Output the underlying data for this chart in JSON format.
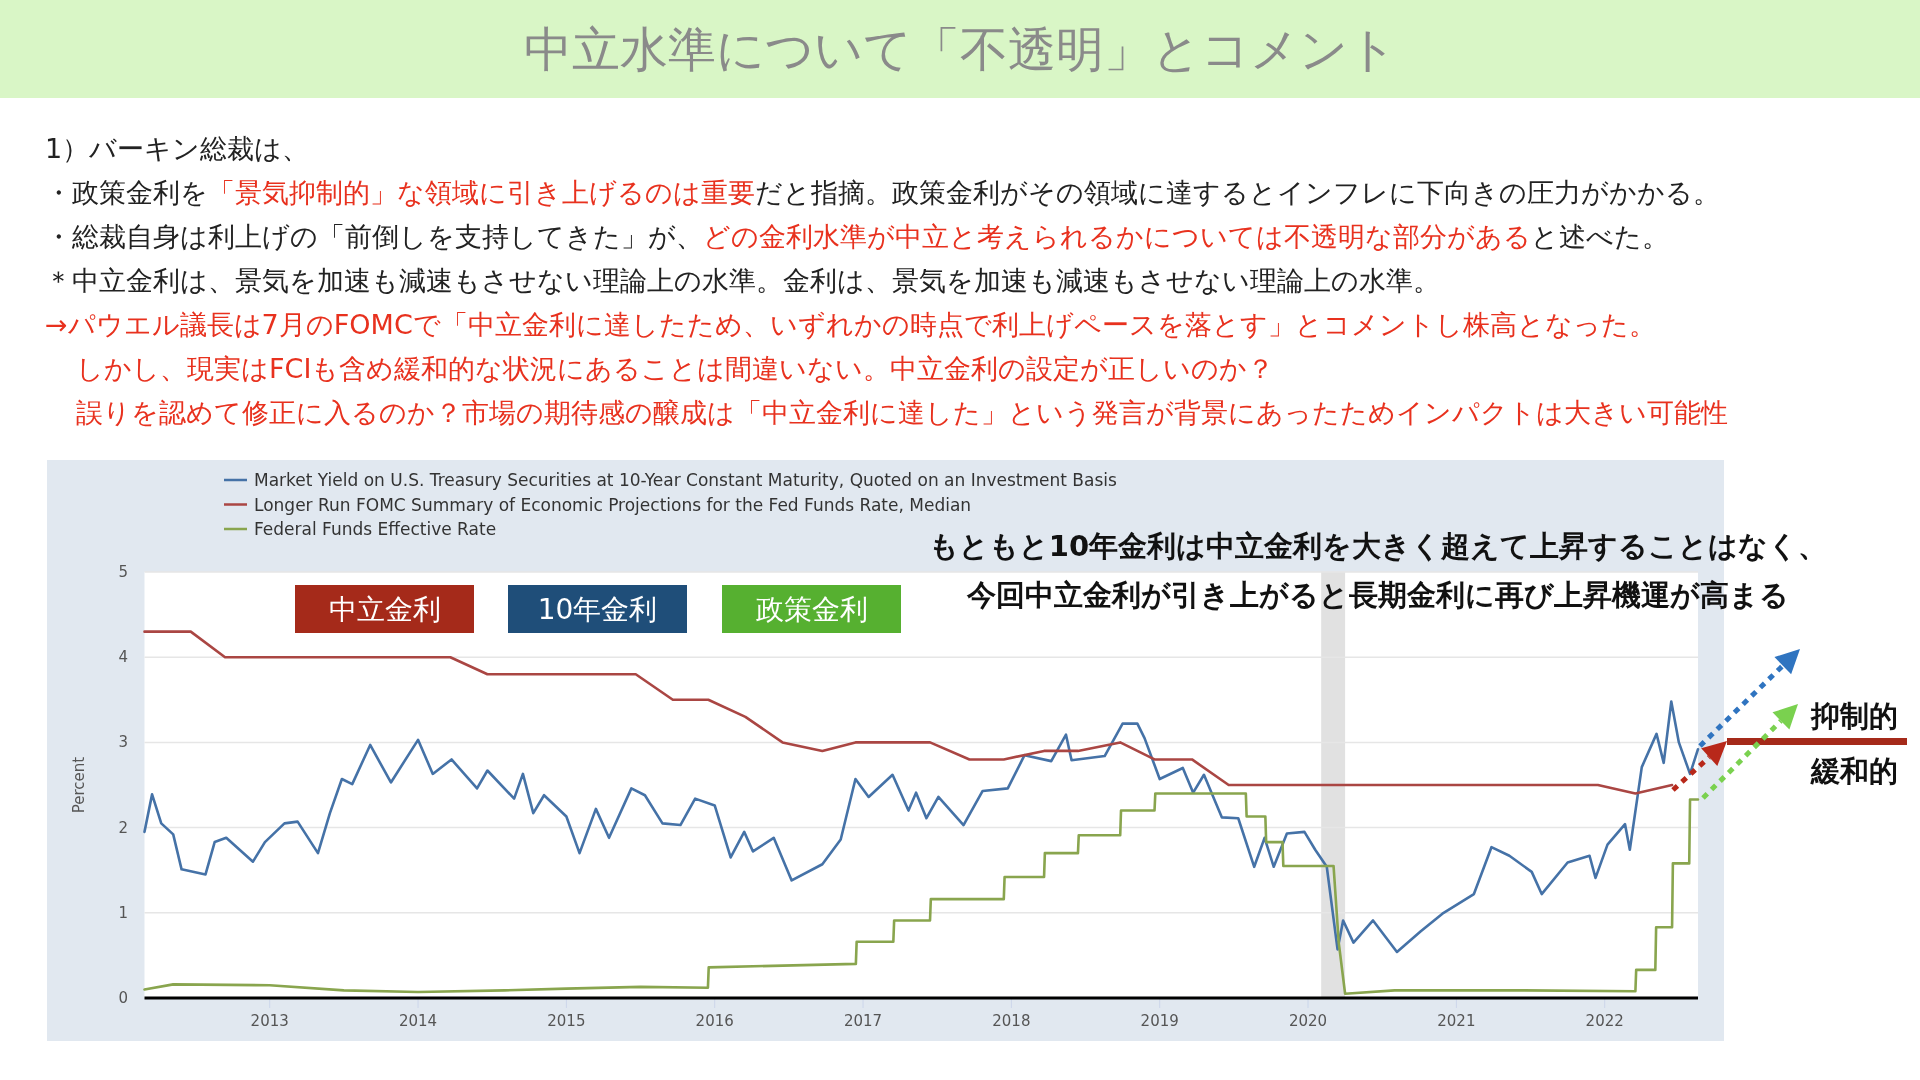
{
  "chart_data": {
    "type": "line",
    "title": "中立水準について「不透明」とコメント",
    "ylabel": "Percent",
    "annotations": [
      "1）バーキン総裁は、",
      "・政策金利を",
      "「景気抑制的」な領域に引き上げるのは重要",
      "だと指摘。政策金利がその領域に達するとインフレに下向きの圧力がかかる。",
      "・総裁自身は利上げの「前倒しを支持してきた」が、",
      "どの金利水準が中立と考えられるかについては不透明な部分がある",
      "と述べた。",
      "＊中立金利は、景気を加速も減速もさせない理論上の水準。金利は、景気を加速も減速もさせない理論上の水準。",
      "→パウエル議長は7月のFOMCで「中立金利に達したため、いずれかの時点で利上げペースを落とす」とコメントし株高となった。",
      "しかし、現実はFCIも含め緩和的な状況にあることは間違いない。中立金利の設定が正しいのか？",
      "誤りを認めて修正に入るのか？市場の期待感の醸成は「中立金利に達した」という発言が背景にあったためインパクトは大きい可能性",
      "中立金利",
      "10年金利",
      "政策金利",
      "もともと10年金利は中立金利を大きく超えて上昇することはなく、",
      "今回中立金利が引き上がると長期金利に再び上昇機運が高まる",
      "抑制的",
      "緩和的"
    ],
    "xlim": [
      "2012-02-28",
      "2022-08-18"
    ],
    "xticks": [
      {
        "value": "2013-01-01",
        "label": "2013"
      },
      {
        "value": "2014-01-01",
        "label": "2014"
      },
      {
        "value": "2015-01-01",
        "label": "2015"
      },
      {
        "value": "2016-01-01",
        "label": "2016"
      },
      {
        "value": "2017-01-01",
        "label": "2017"
      },
      {
        "value": "2018-01-01",
        "label": "2018"
      },
      {
        "value": "2019-01-01",
        "label": "2019"
      },
      {
        "value": "2020-01-01",
        "label": "2020"
      },
      {
        "value": "2021-01-01",
        "label": "2021"
      },
      {
        "value": "2022-01-01",
        "label": "2022"
      }
    ],
    "ylim": [
      0,
      5
    ],
    "yticks": [
      0,
      1,
      2,
      3,
      4,
      5
    ],
    "grid": "y",
    "legend": "top left",
    "bands": [
      {
        "axis": "x",
        "from": "2020-02-03",
        "to": "2020-04-01",
        "color": "#e1e1e1"
      }
    ],
    "series": [
      {
        "name": "Market Yield on U.S. Treasury Securities at 10-Year Constant Maturity, Quoted on an Investment Basis",
        "color": "#4572a7",
        "x": [
          "2012-02-28",
          "2012-03-16",
          "2012-04-08",
          "2012-05-07",
          "2012-05-28",
          "2012-07-26",
          "2012-08-18",
          "2012-09-16",
          "2012-11-21",
          "2012-12-20",
          "2013-02-07",
          "2013-03-09",
          "2013-04-29",
          "2013-05-28",
          "2013-06-27",
          "2013-07-22",
          "2013-09-05",
          "2013-10-26",
          "2014-01-01",
          "2014-02-07",
          "2014-03-23",
          "2014-05-25",
          "2014-06-20",
          "2014-08-25",
          "2014-09-16",
          "2014-10-11",
          "2014-11-07",
          "2015-01-01",
          "2015-02-03",
          "2015-03-13",
          "2015-04-15",
          "2015-06-09",
          "2015-07-12",
          "2015-08-25",
          "2015-10-08",
          "2015-11-14",
          "2016-01-01",
          "2016-02-10",
          "2016-03-13",
          "2016-04-04",
          "2016-05-25",
          "2016-07-08",
          "2016-09-23",
          "2016-11-07",
          "2016-12-13",
          "2017-01-15",
          "2017-03-13",
          "2017-04-22",
          "2017-05-10",
          "2017-06-05",
          "2017-07-04",
          "2017-09-05",
          "2017-10-22",
          "2017-12-23",
          "2018-02-03",
          "2018-04-08",
          "2018-05-14",
          "2018-05-28",
          "2018-08-18",
          "2018-10-01",
          "2018-11-07",
          "2018-11-25",
          "2019-01-01",
          "2019-02-28",
          "2019-03-23",
          "2019-04-19",
          "2019-06-02",
          "2019-07-12",
          "2019-08-21",
          "2019-09-16",
          "2019-10-08",
          "2019-11-10",
          "2019-12-23",
          "2020-01-19",
          "2020-02-17",
          "2020-03-13",
          "2020-03-27",
          "2020-04-22",
          "2020-06-09",
          "2020-08-07",
          "2020-10-04",
          "2020-11-28",
          "2021-02-14",
          "2021-03-27",
          "2021-05-10",
          "2021-07-04",
          "2021-07-29",
          "2021-10-01",
          "2021-11-25",
          "2021-12-09",
          "2022-01-08",
          "2022-02-21",
          "2022-03-02",
          "2022-04-01",
          "2022-05-07",
          "2022-05-25",
          "2022-06-13",
          "2022-07-01",
          "2022-07-29",
          "2022-08-18"
        ],
        "values": [
          1.95,
          2.39,
          2.05,
          1.92,
          1.51,
          1.45,
          1.83,
          1.88,
          1.6,
          1.83,
          2.05,
          2.07,
          1.7,
          2.17,
          2.57,
          2.51,
          2.97,
          2.53,
          3.03,
          2.63,
          2.8,
          2.46,
          2.67,
          2.34,
          2.63,
          2.17,
          2.38,
          2.13,
          1.7,
          2.22,
          1.88,
          2.46,
          2.38,
          2.05,
          2.03,
          2.34,
          2.26,
          1.65,
          1.95,
          1.72,
          1.88,
          1.38,
          1.57,
          1.86,
          2.57,
          2.36,
          2.62,
          2.2,
          2.41,
          2.11,
          2.36,
          2.03,
          2.43,
          2.46,
          2.85,
          2.78,
          3.09,
          2.79,
          2.84,
          3.22,
          3.22,
          3.05,
          2.57,
          2.7,
          2.41,
          2.62,
          2.12,
          2.11,
          1.54,
          1.88,
          1.54,
          1.93,
          1.95,
          1.74,
          1.54,
          0.57,
          0.91,
          0.65,
          0.91,
          0.54,
          0.78,
          0.99,
          1.22,
          1.77,
          1.67,
          1.48,
          1.22,
          1.59,
          1.67,
          1.41,
          1.8,
          2.04,
          1.74,
          2.71,
          3.1,
          2.76,
          3.48,
          3.0,
          2.63,
          2.92
        ]
      },
      {
        "name": "Longer Run FOMC Summary of Economic Projections for the Fed Funds Rate, Median",
        "color": "#aa4643",
        "x": [
          "2012-02-28",
          "2012-06-20",
          "2012-09-13",
          "2014-03-20",
          "2014-06-20",
          "2015-06-20",
          "2015-09-20",
          "2015-12-16",
          "2016-03-16",
          "2016-06-16",
          "2016-09-23",
          "2016-12-13",
          "2017-06-14",
          "2017-09-20",
          "2017-12-13",
          "2018-03-21",
          "2018-06-13",
          "2018-09-26",
          "2018-12-19",
          "2019-03-20",
          "2019-06-19",
          "2021-12-15",
          "2022-03-16",
          "2022-06-15"
        ],
        "values": [
          4.3,
          4.3,
          4.0,
          4.0,
          3.8,
          3.8,
          3.5,
          3.5,
          3.3,
          3.0,
          2.9,
          3.0,
          3.0,
          2.8,
          2.8,
          2.9,
          2.9,
          3.0,
          2.8,
          2.8,
          2.5,
          2.5,
          2.4,
          2.5
        ]
      },
      {
        "name": "Federal Funds Effective Rate",
        "color": "#89a54e",
        "x": [
          "2012-02-28",
          "2012-05-07",
          "2013-01-01",
          "2013-07-01",
          "2014-01-01",
          "2014-08-01",
          "2015-01-01",
          "2015-07-01",
          "2015-12-15",
          "2015-12-17",
          "2016-12-14",
          "2016-12-16",
          "2017-03-15",
          "2017-03-17",
          "2017-06-14",
          "2017-06-16",
          "2017-12-13",
          "2017-12-15",
          "2018-03-21",
          "2018-03-23",
          "2018-06-13",
          "2018-06-15",
          "2018-09-26",
          "2018-09-28",
          "2018-12-19",
          "2018-12-21",
          "2019-07-31",
          "2019-08-02",
          "2019-09-18",
          "2019-09-20",
          "2019-10-30",
          "2019-11-01",
          "2020-03-03",
          "2020-03-16",
          "2020-04-01",
          "2020-08-01",
          "2021-06-01",
          "2022-03-16",
          "2022-03-18",
          "2022-05-04",
          "2022-05-06",
          "2022-06-15",
          "2022-06-17",
          "2022-07-27",
          "2022-07-29",
          "2022-08-18"
        ],
        "values": [
          0.1,
          0.16,
          0.15,
          0.09,
          0.07,
          0.09,
          0.11,
          0.13,
          0.12,
          0.36,
          0.4,
          0.66,
          0.66,
          0.91,
          0.91,
          1.16,
          1.16,
          1.42,
          1.42,
          1.7,
          1.7,
          1.91,
          1.91,
          2.2,
          2.2,
          2.4,
          2.4,
          2.13,
          2.13,
          1.83,
          1.83,
          1.55,
          1.55,
          0.65,
          0.05,
          0.09,
          0.09,
          0.08,
          0.33,
          0.33,
          0.83,
          0.83,
          1.58,
          1.58,
          2.33,
          2.33
        ]
      }
    ]
  }
}
